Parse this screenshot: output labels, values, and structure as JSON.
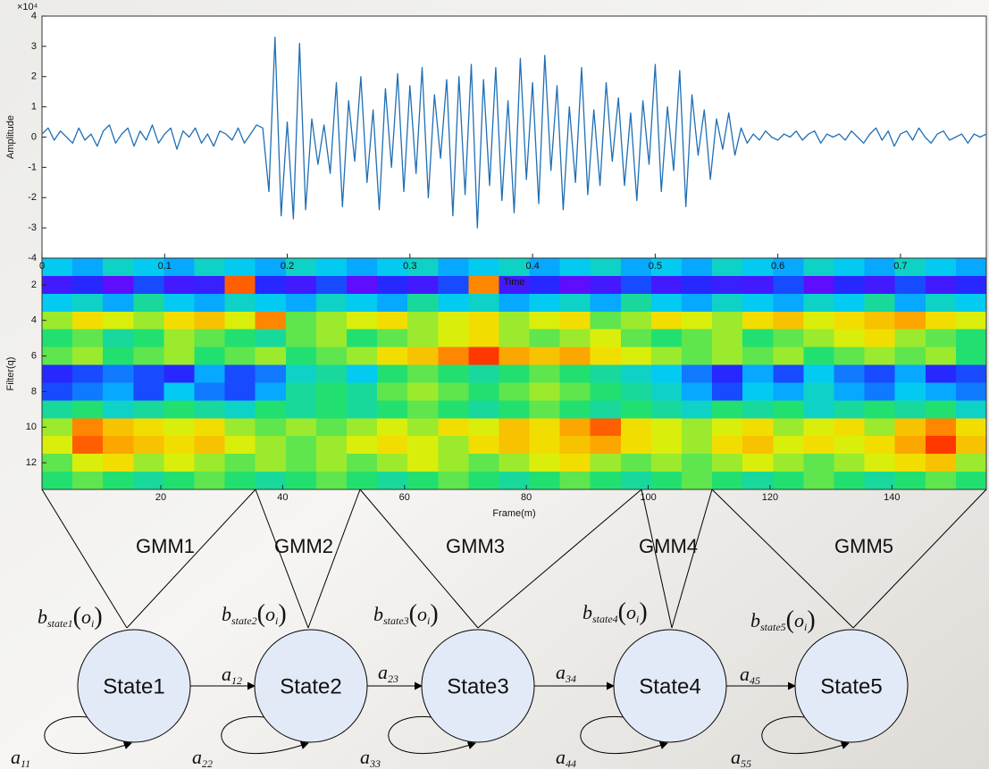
{
  "chart_data": [
    {
      "type": "line",
      "color": "#1f6fb5",
      "ylabel": "Amplitude",
      "xlabel": "Time",
      "y_multiplier": "×10⁴",
      "xlim": [
        0,
        0.77
      ],
      "ylim": [
        -4,
        4
      ],
      "xticks": [
        0,
        0.1,
        0.2,
        0.3,
        0.4,
        0.5,
        0.6,
        0.7
      ],
      "yticks": [
        -4,
        -3,
        -2,
        -1,
        0,
        1,
        2,
        3,
        4
      ],
      "x": [
        0,
        0.005,
        0.01,
        0.015,
        0.02,
        0.025,
        0.03,
        0.035,
        0.04,
        0.045,
        0.05,
        0.055,
        0.06,
        0.065,
        0.07,
        0.075,
        0.08,
        0.085,
        0.09,
        0.095,
        0.1,
        0.105,
        0.11,
        0.115,
        0.12,
        0.125,
        0.13,
        0.135,
        0.14,
        0.145,
        0.15,
        0.155,
        0.16,
        0.165,
        0.17,
        0.175,
        0.18,
        0.185,
        0.19,
        0.195,
        0.2,
        0.205,
        0.21,
        0.215,
        0.22,
        0.225,
        0.23,
        0.235,
        0.24,
        0.245,
        0.25,
        0.255,
        0.26,
        0.265,
        0.27,
        0.275,
        0.28,
        0.285,
        0.29,
        0.295,
        0.3,
        0.305,
        0.31,
        0.315,
        0.32,
        0.325,
        0.33,
        0.335,
        0.34,
        0.345,
        0.35,
        0.355,
        0.36,
        0.365,
        0.37,
        0.375,
        0.38,
        0.385,
        0.39,
        0.395,
        0.4,
        0.405,
        0.41,
        0.415,
        0.42,
        0.425,
        0.43,
        0.435,
        0.44,
        0.445,
        0.45,
        0.455,
        0.46,
        0.465,
        0.47,
        0.475,
        0.48,
        0.485,
        0.49,
        0.495,
        0.5,
        0.505,
        0.51,
        0.515,
        0.52,
        0.525,
        0.53,
        0.535,
        0.54,
        0.545,
        0.55,
        0.555,
        0.56,
        0.565,
        0.57,
        0.575,
        0.58,
        0.585,
        0.59,
        0.595,
        0.6,
        0.605,
        0.61,
        0.615,
        0.62,
        0.625,
        0.63,
        0.635,
        0.64,
        0.645,
        0.65,
        0.655,
        0.66,
        0.665,
        0.67,
        0.675,
        0.68,
        0.685,
        0.69,
        0.695,
        0.7,
        0.705,
        0.71,
        0.715,
        0.72,
        0.725,
        0.73,
        0.735,
        0.74,
        0.745,
        0.75,
        0.755,
        0.76,
        0.765,
        0.77
      ],
      "values": [
        0.1,
        0.3,
        -0.1,
        0.2,
        0,
        -0.2,
        0.3,
        -0.1,
        0.1,
        -0.3,
        0.2,
        0.4,
        -0.2,
        0.1,
        0.3,
        -0.3,
        0.2,
        -0.1,
        0.4,
        -0.2,
        0.1,
        0.3,
        -0.4,
        0.2,
        0,
        0.3,
        -0.2,
        0.1,
        -0.3,
        0.2,
        0.1,
        -0.1,
        0.3,
        -0.2,
        0.1,
        0.4,
        0.3,
        -1.8,
        3.3,
        -2.6,
        0.5,
        -2.7,
        3.1,
        -2.4,
        0.6,
        -0.9,
        0.4,
        -1.2,
        1.8,
        -2.3,
        1.2,
        -0.8,
        2.0,
        -1.5,
        0.9,
        -2.4,
        1.6,
        -1.0,
        2.1,
        -1.8,
        1.7,
        -1.2,
        2.3,
        -2.0,
        1.4,
        -0.7,
        1.9,
        -2.6,
        2.0,
        -1.9,
        2.4,
        -3.0,
        1.9,
        -1.6,
        2.3,
        -2.1,
        1.2,
        -2.5,
        2.6,
        -1.4,
        1.8,
        -2.2,
        2.7,
        -1.1,
        1.7,
        -2.4,
        1.0,
        -1.5,
        2.3,
        -1.9,
        0.9,
        -1.6,
        1.8,
        -0.8,
        1.3,
        -1.6,
        0.8,
        -2.1,
        1.2,
        -0.9,
        2.4,
        -1.8,
        1.0,
        -1.1,
        2.2,
        -2.3,
        1.4,
        -0.6,
        0.9,
        -1.4,
        0.6,
        -0.4,
        0.8,
        -0.6,
        0.3,
        -0.2,
        0.1,
        -0.1,
        0.2,
        0,
        -0.1,
        0.1,
        0,
        0.2,
        -0.1,
        0.1,
        0.2,
        -0.2,
        0.1,
        0,
        0.1,
        -0.1,
        0.2,
        0,
        -0.2,
        0.1,
        0.3,
        -0.1,
        0.2,
        -0.3,
        0.1,
        0.2,
        -0.1,
        0.3,
        0,
        -0.2,
        0.1,
        0.2,
        -0.1,
        0,
        0.1,
        -0.2,
        0.1,
        0,
        0.1
      ]
    },
    {
      "type": "heatmap",
      "ylabel": "Filter(q)",
      "xlabel": "Frame(m)",
      "xlim": [
        0.5,
        155.5
      ],
      "ylim": [
        0.5,
        13.5
      ],
      "clim": [
        0,
        1
      ],
      "colormap": [
        "#7a00ff",
        "#1e2cff",
        "#00c8ff",
        "#22e070",
        "#eef000",
        "#ff9400",
        "#ff1000"
      ],
      "xticks": [
        20,
        40,
        60,
        80,
        100,
        120,
        140
      ],
      "yticks": [
        2,
        4,
        6,
        8,
        10,
        12
      ],
      "x_bins": [
        0.5,
        5.5,
        10.5,
        15.5,
        20.5,
        25.5,
        30.5,
        35.5,
        40.5,
        45.5,
        50.5,
        55.5,
        60.5,
        65.5,
        70.5,
        75.5,
        80.5,
        85.5,
        90.5,
        95.5,
        100.5,
        105.5,
        110.5,
        115.5,
        120.5,
        125.5,
        130.5,
        135.5,
        140.5,
        145.5,
        150.5,
        155.5
      ],
      "y": [
        1,
        2,
        3,
        4,
        5,
        6,
        7,
        8,
        9,
        10,
        11,
        12,
        13
      ],
      "values": [
        [
          0.35,
          0.3,
          0.4,
          0.35,
          0.3,
          0.4,
          0.35,
          0.3,
          0.4,
          0.35,
          0.3,
          0.35,
          0.4,
          0.3,
          0.35,
          0.4,
          0.3,
          0.35,
          0.4,
          0.3,
          0.35,
          0.3,
          0.4,
          0.35,
          0.3,
          0.4,
          0.35,
          0.3,
          0.4,
          0.35,
          0.3
        ],
        [
          0.1,
          0.15,
          0.05,
          0.2,
          0.1,
          0.12,
          0.9,
          0.15,
          0.1,
          0.2,
          0.05,
          0.15,
          0.1,
          0.2,
          0.85,
          0.1,
          0.15,
          0.05,
          0.1,
          0.2,
          0.1,
          0.15,
          0.12,
          0.1,
          0.2,
          0.05,
          0.15,
          0.1,
          0.2,
          0.1,
          0.15
        ],
        [
          0.35,
          0.4,
          0.3,
          0.45,
          0.35,
          0.3,
          0.4,
          0.35,
          0.3,
          0.4,
          0.35,
          0.3,
          0.45,
          0.35,
          0.4,
          0.3,
          0.35,
          0.4,
          0.3,
          0.45,
          0.35,
          0.3,
          0.4,
          0.35,
          0.3,
          0.4,
          0.35,
          0.45,
          0.3,
          0.4,
          0.35
        ],
        [
          0.6,
          0.7,
          0.65,
          0.6,
          0.7,
          0.75,
          0.65,
          0.85,
          0.55,
          0.6,
          0.65,
          0.7,
          0.6,
          0.65,
          0.7,
          0.6,
          0.65,
          0.7,
          0.55,
          0.6,
          0.7,
          0.65,
          0.6,
          0.7,
          0.75,
          0.65,
          0.7,
          0.75,
          0.8,
          0.7,
          0.65
        ],
        [
          0.5,
          0.55,
          0.45,
          0.5,
          0.6,
          0.55,
          0.5,
          0.45,
          0.55,
          0.6,
          0.5,
          0.55,
          0.6,
          0.65,
          0.7,
          0.6,
          0.55,
          0.6,
          0.65,
          0.55,
          0.5,
          0.55,
          0.6,
          0.5,
          0.55,
          0.6,
          0.65,
          0.7,
          0.6,
          0.55,
          0.5
        ],
        [
          0.55,
          0.6,
          0.5,
          0.55,
          0.6,
          0.5,
          0.55,
          0.6,
          0.5,
          0.55,
          0.6,
          0.7,
          0.75,
          0.85,
          0.95,
          0.8,
          0.75,
          0.8,
          0.7,
          0.65,
          0.6,
          0.55,
          0.6,
          0.55,
          0.6,
          0.5,
          0.55,
          0.6,
          0.55,
          0.6,
          0.5
        ],
        [
          0.15,
          0.2,
          0.25,
          0.2,
          0.15,
          0.3,
          0.2,
          0.25,
          0.4,
          0.45,
          0.35,
          0.5,
          0.55,
          0.5,
          0.45,
          0.5,
          0.55,
          0.5,
          0.45,
          0.4,
          0.35,
          0.25,
          0.15,
          0.3,
          0.2,
          0.35,
          0.25,
          0.2,
          0.3,
          0.15,
          0.2
        ],
        [
          0.2,
          0.25,
          0.3,
          0.2,
          0.35,
          0.25,
          0.2,
          0.3,
          0.45,
          0.5,
          0.45,
          0.55,
          0.6,
          0.55,
          0.5,
          0.55,
          0.6,
          0.55,
          0.5,
          0.45,
          0.4,
          0.3,
          0.2,
          0.35,
          0.3,
          0.4,
          0.3,
          0.25,
          0.35,
          0.3,
          0.25
        ],
        [
          0.45,
          0.5,
          0.4,
          0.45,
          0.5,
          0.45,
          0.4,
          0.5,
          0.45,
          0.5,
          0.45,
          0.5,
          0.55,
          0.5,
          0.45,
          0.5,
          0.55,
          0.5,
          0.45,
          0.5,
          0.45,
          0.4,
          0.5,
          0.45,
          0.5,
          0.4,
          0.45,
          0.5,
          0.45,
          0.5,
          0.4
        ],
        [
          0.6,
          0.85,
          0.75,
          0.7,
          0.65,
          0.7,
          0.6,
          0.55,
          0.6,
          0.55,
          0.6,
          0.65,
          0.6,
          0.7,
          0.65,
          0.75,
          0.7,
          0.8,
          0.9,
          0.7,
          0.65,
          0.6,
          0.65,
          0.7,
          0.6,
          0.65,
          0.7,
          0.6,
          0.75,
          0.85,
          0.7
        ],
        [
          0.65,
          0.9,
          0.8,
          0.75,
          0.7,
          0.75,
          0.65,
          0.6,
          0.55,
          0.6,
          0.65,
          0.7,
          0.65,
          0.6,
          0.7,
          0.75,
          0.7,
          0.75,
          0.8,
          0.7,
          0.65,
          0.6,
          0.7,
          0.75,
          0.65,
          0.7,
          0.65,
          0.7,
          0.8,
          0.95,
          0.75
        ],
        [
          0.55,
          0.65,
          0.7,
          0.6,
          0.65,
          0.6,
          0.55,
          0.6,
          0.55,
          0.6,
          0.55,
          0.6,
          0.65,
          0.6,
          0.55,
          0.6,
          0.65,
          0.7,
          0.6,
          0.55,
          0.6,
          0.55,
          0.6,
          0.65,
          0.6,
          0.55,
          0.6,
          0.65,
          0.7,
          0.75,
          0.6
        ],
        [
          0.5,
          0.55,
          0.5,
          0.45,
          0.5,
          0.55,
          0.5,
          0.45,
          0.5,
          0.55,
          0.5,
          0.45,
          0.5,
          0.55,
          0.5,
          0.45,
          0.5,
          0.55,
          0.5,
          0.45,
          0.5,
          0.55,
          0.5,
          0.45,
          0.5,
          0.55,
          0.5,
          0.45,
          0.5,
          0.55,
          0.5
        ]
      ]
    }
  ],
  "diagram": {
    "gmms": [
      "GMM1",
      "GMM2",
      "GMM3",
      "GMM4",
      "GMM5"
    ],
    "emissions": [
      {
        "base": "b",
        "sub": "state1",
        "open": "(",
        "arg": "o",
        "arg_sub": "i",
        "close": ")"
      },
      {
        "base": "b",
        "sub": "state2",
        "open": "(",
        "arg": "o",
        "arg_sub": "i",
        "close": ")"
      },
      {
        "base": "b",
        "sub": "state3",
        "open": "(",
        "arg": "o",
        "arg_sub": "i",
        "close": ")"
      },
      {
        "base": "b",
        "sub": "state4",
        "open": "(",
        "arg": "o",
        "arg_sub": "i",
        "close": ")"
      },
      {
        "base": "b",
        "sub": "state5",
        "open": "(",
        "arg": "o",
        "arg_sub": "i",
        "close": ")"
      }
    ],
    "states": [
      "State1",
      "State2",
      "State3",
      "State4",
      "State5"
    ],
    "transitions": [
      {
        "base": "a",
        "sub": "12"
      },
      {
        "base": "a",
        "sub": "23"
      },
      {
        "base": "a",
        "sub": "34"
      },
      {
        "base": "a",
        "sub": "45"
      }
    ],
    "self_loops": [
      {
        "base": "a",
        "sub": "11"
      },
      {
        "base": "a",
        "sub": "22"
      },
      {
        "base": "a",
        "sub": "33"
      },
      {
        "base": "a",
        "sub": "44"
      },
      {
        "base": "a",
        "sub": "55"
      }
    ]
  }
}
